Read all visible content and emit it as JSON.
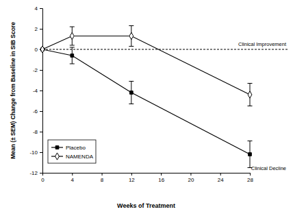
{
  "chart_data": {
    "type": "line",
    "x_label": "Weeks of Treatment",
    "y_label": "Mean (± SEM) Change from Baseline in SIB Score",
    "annotations": [
      "Clinical Improvement",
      "Clinical Decline"
    ],
    "reference_line": {
      "y": 0,
      "line_style": "dashed"
    },
    "xlim": [
      0,
      28
    ],
    "xticks": [
      0,
      4,
      8,
      12,
      16,
      20,
      24,
      28
    ],
    "ylim": [
      -12,
      4
    ],
    "yticks": [
      -12,
      -10,
      -8,
      -6,
      -4,
      -2,
      0,
      2,
      4
    ],
    "legend": "lower left",
    "x": [
      0,
      4,
      12,
      28
    ],
    "series": [
      {
        "name": "Placebo",
        "color": "#000000",
        "marker": "square",
        "line_style": "solid",
        "values": [
          0,
          -0.6,
          -4.2,
          -10.2
        ],
        "errors": [
          0,
          0.8,
          1.1,
          1.3
        ]
      },
      {
        "name": "NAMENDA",
        "color": "#000000",
        "marker": "diamond-open",
        "line_style": "solid",
        "values": [
          0,
          1.3,
          1.3,
          -4.4
        ],
        "errors": [
          0,
          0.9,
          1.0,
          1.1
        ]
      }
    ]
  }
}
